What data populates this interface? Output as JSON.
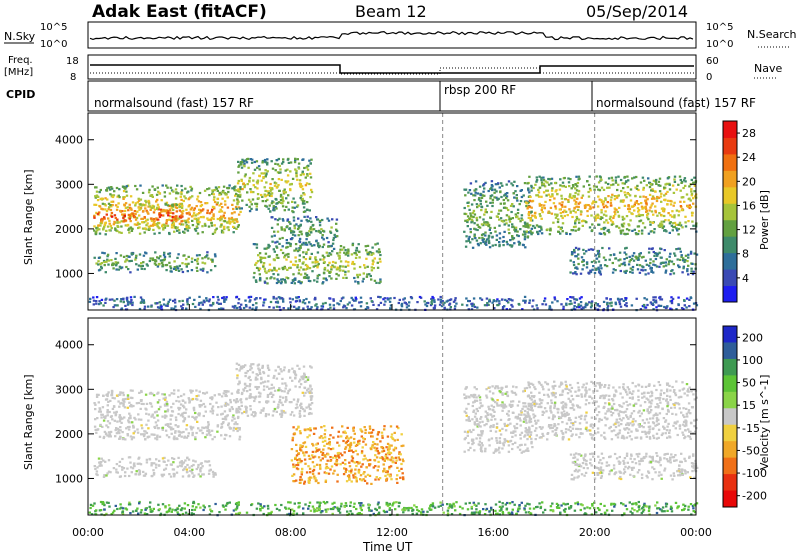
{
  "header": {
    "station": "Adak East (fitACF)",
    "beam": "Beam 12",
    "date": "05/Sep/2014"
  },
  "labels": {
    "nsky": "N.Sky",
    "nsearch": "N.Search",
    "freq_line1": "Freq.",
    "freq_line2": "[MHz]",
    "nave": "Nave",
    "cpid": "CPID",
    "time_axis": "Time UT"
  },
  "colors": {
    "power_scale": [
      "#1e1ef0",
      "#3a4ab4",
      "#2e6e9a",
      "#3e8a6a",
      "#62a040",
      "#a6c43a",
      "#e8c828",
      "#f0a020",
      "#f07010",
      "#e83a10",
      "#e81010"
    ],
    "velocity_scale": [
      "#1e28c8",
      "#2f5e9a",
      "#3e9a52",
      "#5cc436",
      "#8ad448",
      "#c8c8c8",
      "#f0d040",
      "#f0a828",
      "#f07018",
      "#e83010",
      "#e80808"
    ]
  },
  "chart_data": {
    "type": "heatmap",
    "time_ticks": [
      "00:00",
      "04:00",
      "08:00",
      "12:00",
      "16:00",
      "20:00",
      "00:00"
    ],
    "xlim_hours": [
      0,
      24
    ],
    "ylim_km": [
      180,
      4600
    ],
    "y_ticks": [
      "1000",
      "2000",
      "3000",
      "4000"
    ],
    "y_tick_values": [
      1000,
      2000,
      3000,
      4000
    ],
    "ylabel": "Slant Range [km]",
    "xlabel": "Time UT",
    "summary_panels": {
      "nsky_ticks": [
        "10^5",
        "10^0"
      ],
      "nsearch_ticks": [
        "10^5",
        "10^0"
      ],
      "freq_ticks": [
        "18",
        "8"
      ],
      "nave_ticks": [
        "60",
        "0"
      ]
    },
    "cpid_segments": [
      {
        "label": "normalsound (fast) 157 RF",
        "start_hour": 0,
        "end_hour": 14
      },
      {
        "label": "rbsp 200 RF",
        "start_hour": 14,
        "end_hour": 20
      },
      {
        "label": "normalsound (fast) 157 RF",
        "start_hour": 20,
        "end_hour": 24
      }
    ],
    "panels": [
      {
        "name": "Power",
        "colorbar_label": "Power [dB]",
        "colorbar_ticks": [
          "4",
          "8",
          "12",
          "16",
          "20",
          "24",
          "28"
        ],
        "colorbar_values": [
          4,
          8,
          12,
          16,
          20,
          24,
          28
        ],
        "colorbar_range": [
          0,
          30
        ],
        "regions": [
          {
            "t0": 0.2,
            "t1": 6.0,
            "r0": 1900,
            "r1": 3000,
            "level": 0.75
          },
          {
            "t0": 0.2,
            "t1": 4.0,
            "r0": 2000,
            "r1": 2600,
            "level": 0.9
          },
          {
            "t0": 0.2,
            "t1": 5.0,
            "r0": 1050,
            "r1": 1500,
            "level": 0.45
          },
          {
            "t0": 5.8,
            "t1": 8.8,
            "r0": 2400,
            "r1": 3600,
            "level": 0.6
          },
          {
            "t0": 6.5,
            "t1": 11.5,
            "r0": 800,
            "r1": 1700,
            "level": 0.55
          },
          {
            "t0": 7.2,
            "t1": 9.8,
            "r0": 1700,
            "r1": 2300,
            "level": 0.4
          },
          {
            "t0": 14.8,
            "t1": 17.5,
            "r0": 1600,
            "r1": 3100,
            "level": 0.45
          },
          {
            "t0": 17.2,
            "t1": 24.0,
            "r0": 1900,
            "r1": 3200,
            "level": 0.7
          },
          {
            "t0": 19.0,
            "t1": 24.0,
            "r0": 1000,
            "r1": 1600,
            "level": 0.35
          },
          {
            "t0": 0.0,
            "t1": 24.0,
            "r0": 200,
            "r1": 500,
            "level": 0.2
          }
        ]
      },
      {
        "name": "Velocity",
        "colorbar_label": "Velocity [m s^-1]",
        "colorbar_ticks": [
          "200",
          "100",
          "50",
          "15",
          "-15",
          "-50",
          "-100",
          "-200"
        ],
        "colorbar_values": [
          200,
          100,
          50,
          15,
          -15,
          -50,
          -100,
          -200
        ],
        "colorbar_range": [
          -250,
          250
        ],
        "regions": [
          {
            "t0": 0.2,
            "t1": 6.0,
            "r0": 1900,
            "r1": 3000,
            "level": 0.5
          },
          {
            "t0": 0.2,
            "t1": 5.0,
            "r0": 1050,
            "r1": 1500,
            "level": 0.5
          },
          {
            "t0": 5.8,
            "t1": 8.8,
            "r0": 2400,
            "r1": 3600,
            "level": 0.5
          },
          {
            "t0": 8.0,
            "t1": 12.4,
            "r0": 900,
            "r1": 2200,
            "level": 0.7
          },
          {
            "t0": 14.8,
            "t1": 17.5,
            "r0": 1600,
            "r1": 3100,
            "level": 0.5
          },
          {
            "t0": 17.2,
            "t1": 24.0,
            "r0": 1900,
            "r1": 3200,
            "level": 0.5
          },
          {
            "t0": 19.0,
            "t1": 24.0,
            "r0": 1000,
            "r1": 1600,
            "level": 0.5
          },
          {
            "t0": 0.0,
            "t1": 24.0,
            "r0": 200,
            "r1": 500,
            "level": 0.25
          }
        ]
      }
    ]
  }
}
